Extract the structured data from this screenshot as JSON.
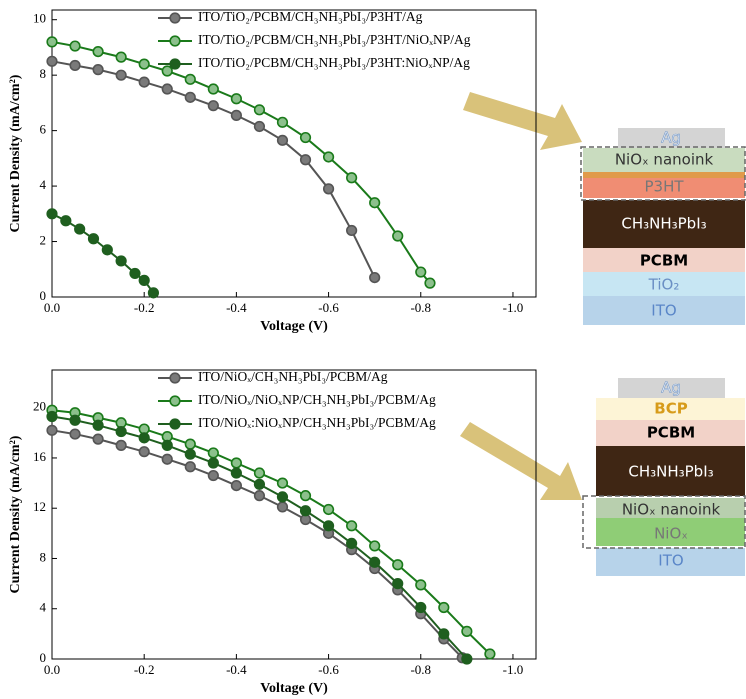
{
  "chart_data": [
    {
      "type": "line",
      "x_label": "Voltage (V)",
      "y_label": "Current Density (mA/cm²)",
      "xlim": [
        0,
        -1.05
      ],
      "ylim": [
        0,
        10.35
      ],
      "xticks": [
        {
          "value": 0,
          "label": "0.0"
        },
        -0.2,
        -0.4,
        -0.6,
        -0.8,
        {
          "value": -1,
          "label": "-1.0"
        }
      ],
      "yticks": [
        0,
        2,
        4,
        6,
        8,
        10
      ],
      "series": [
        {
          "name": "ITO/TiO₂/PCBM/CH₃NH₃PbI₃/P3HT/Ag",
          "color": "#555555",
          "marker_face": "#7a7a7a",
          "x": [
            0,
            -0.05,
            -0.1,
            -0.15,
            -0.2,
            -0.25,
            -0.3,
            -0.35,
            -0.4,
            -0.45,
            -0.5,
            -0.55,
            -0.6,
            -0.65,
            -0.7
          ],
          "values": [
            8.5,
            8.35,
            8.2,
            8.0,
            7.75,
            7.5,
            7.2,
            6.9,
            6.55,
            6.15,
            5.65,
            4.95,
            3.9,
            2.4,
            0.7
          ]
        },
        {
          "name": "ITO/TiO₂/PCBM/CH₃NH₃PbI₃/P3HT/NiOₓNP/Ag",
          "color": "#1a7a1a",
          "marker_face": "#8cc08c",
          "x": [
            0,
            -0.05,
            -0.1,
            -0.15,
            -0.2,
            -0.25,
            -0.3,
            -0.35,
            -0.4,
            -0.45,
            -0.5,
            -0.55,
            -0.6,
            -0.65,
            -0.7,
            -0.75,
            -0.8,
            -0.82
          ],
          "values": [
            9.2,
            9.05,
            8.85,
            8.65,
            8.4,
            8.15,
            7.85,
            7.5,
            7.15,
            6.75,
            6.3,
            5.75,
            5.05,
            4.3,
            3.4,
            2.2,
            0.9,
            0.5
          ]
        },
        {
          "name": "ITO/TiO₂/PCBM/CH₃NH₃PbI₃/P3HT:NiOₓNP/Ag",
          "color": "#1f5f1f",
          "marker_face": "#1f5f1f",
          "x": [
            0,
            -0.03,
            -0.06,
            -0.09,
            -0.12,
            -0.15,
            -0.18,
            -0.2,
            -0.22
          ],
          "values": [
            3.0,
            2.75,
            2.45,
            2.1,
            1.7,
            1.3,
            0.85,
            0.6,
            0.15
          ]
        }
      ]
    },
    {
      "type": "line",
      "x_label": "Voltage (V)",
      "y_label": "Current Density (mA/cm²)",
      "xlim": [
        0,
        -1.05
      ],
      "ylim": [
        0,
        23
      ],
      "xticks": [
        {
          "value": 0,
          "label": "0.0"
        },
        -0.2,
        -0.4,
        -0.6,
        -0.8,
        {
          "value": -1,
          "label": "-1.0"
        }
      ],
      "yticks": [
        0,
        4,
        8,
        12,
        16,
        20
      ],
      "series": [
        {
          "name": "ITO/NiOₓ/CH₃NH₃PbI₃/PCBM/Ag",
          "color": "#555555",
          "marker_face": "#7a7a7a",
          "x": [
            0,
            -0.05,
            -0.1,
            -0.15,
            -0.2,
            -0.25,
            -0.3,
            -0.35,
            -0.4,
            -0.45,
            -0.5,
            -0.55,
            -0.6,
            -0.65,
            -0.7,
            -0.75,
            -0.8,
            -0.85,
            -0.89
          ],
          "values": [
            18.2,
            17.9,
            17.5,
            17.0,
            16.5,
            15.9,
            15.3,
            14.6,
            13.8,
            13.0,
            12.1,
            11.1,
            10.0,
            8.7,
            7.2,
            5.5,
            3.6,
            1.6,
            0.1
          ]
        },
        {
          "name": "ITO/NiOₓ/NiOₓNP/CH₃NH₃PbI₃/PCBM/Ag",
          "color": "#1a7a1a",
          "marker_face": "#8cc08c",
          "x": [
            0,
            -0.05,
            -0.1,
            -0.15,
            -0.2,
            -0.25,
            -0.3,
            -0.35,
            -0.4,
            -0.45,
            -0.5,
            -0.55,
            -0.6,
            -0.65,
            -0.7,
            -0.75,
            -0.8,
            -0.85,
            -0.9,
            -0.95
          ],
          "values": [
            19.8,
            19.6,
            19.2,
            18.8,
            18.3,
            17.7,
            17.1,
            16.4,
            15.6,
            14.8,
            14.0,
            13.0,
            11.9,
            10.6,
            9.0,
            7.5,
            5.9,
            4.1,
            2.2,
            0.4
          ]
        },
        {
          "name": "ITO/NiOₓ:NiOₓNP/CH₃NH₃PbI₃/PCBM/Ag",
          "color": "#1f5f1f",
          "marker_face": "#1f5f1f",
          "x": [
            0,
            -0.05,
            -0.1,
            -0.15,
            -0.2,
            -0.25,
            -0.3,
            -0.35,
            -0.4,
            -0.45,
            -0.5,
            -0.55,
            -0.6,
            -0.65,
            -0.7,
            -0.75,
            -0.8,
            -0.85,
            -0.9
          ],
          "values": [
            19.3,
            19.0,
            18.6,
            18.1,
            17.6,
            17.0,
            16.3,
            15.6,
            14.8,
            13.9,
            12.9,
            11.8,
            10.6,
            9.2,
            7.7,
            6.0,
            4.1,
            2.0,
            0.0
          ]
        }
      ]
    }
  ],
  "diagrams": [
    {
      "layers": [
        "Ag",
        "NiOₓ nanoink",
        "P3HT",
        "CH₃NH₃PbI₃",
        "PCBM",
        "TiO₂",
        "ITO"
      ]
    },
    {
      "layers": [
        "Ag",
        "BCP",
        "PCBM",
        "CH₃NH₃PbI₃",
        "NiOₓ nanoink",
        "NiOₓ",
        "ITO"
      ]
    }
  ]
}
